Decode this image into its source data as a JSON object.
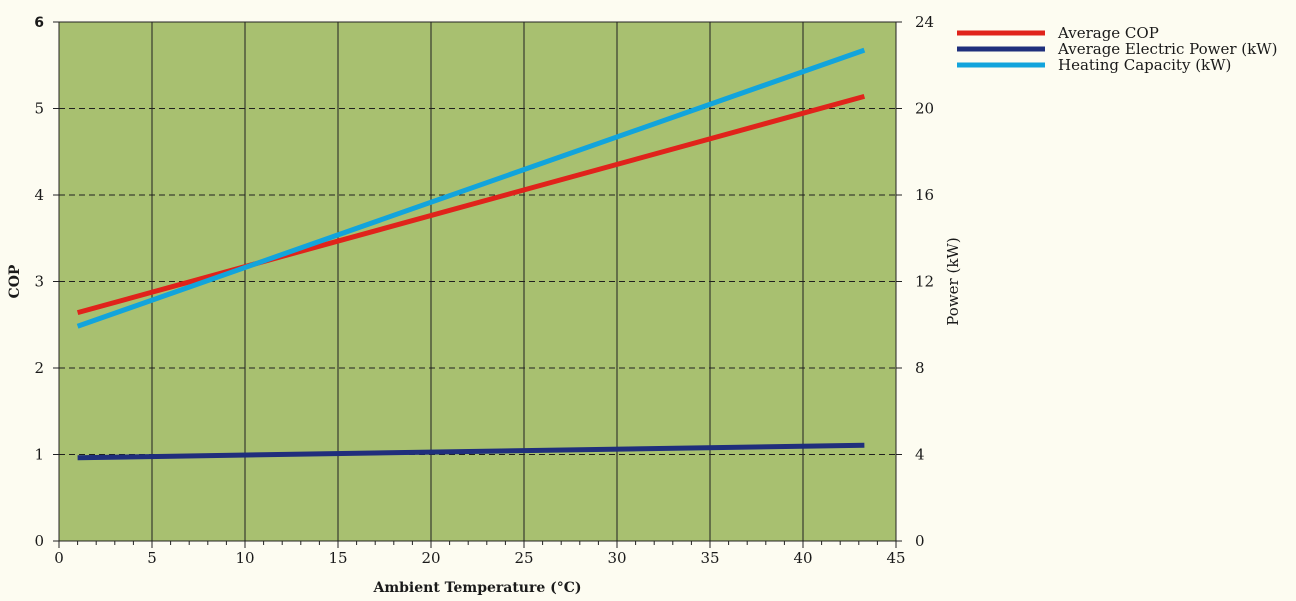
{
  "chart_data": {
    "type": "line",
    "xlabel": "Ambient Temperature (°C)",
    "ylabel": "COP",
    "y2label": "Power (kW)",
    "xlim": [
      0,
      45
    ],
    "ylim": [
      0,
      6
    ],
    "y2lim": [
      0,
      24
    ],
    "x_ticks": [
      "0",
      "5",
      "10",
      "15",
      "20",
      "25",
      "30",
      "35",
      "40",
      "45"
    ],
    "y_ticks": [
      "0",
      "1",
      "2",
      "3",
      "4",
      "5",
      "6"
    ],
    "y2_ticks": [
      "0",
      "4",
      "8",
      "12",
      "16",
      "20",
      "24"
    ],
    "grid": "vertical solid, horizontal dashed",
    "legend_placement": "top-right",
    "plot_background": "#a8c070",
    "series": [
      {
        "name": "Average COP",
        "axis": "left",
        "color": "#e0231b",
        "x": [
          1,
          43.3
        ],
        "y": [
          2.64,
          5.14
        ]
      },
      {
        "name": "Average Electric Power (kW)",
        "axis": "right",
        "color": "#1f2f7c",
        "x": [
          1,
          43.3
        ],
        "y": [
          3.85,
          4.43
        ]
      },
      {
        "name": "Heating Capacity (kW)",
        "axis": "right",
        "color": "#12a4dc",
        "x": [
          1,
          43.3
        ],
        "y": [
          9.93,
          22.7
        ]
      }
    ]
  }
}
